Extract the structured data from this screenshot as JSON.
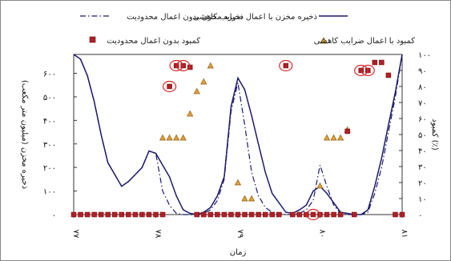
{
  "chart_data": {
    "type": "line",
    "direction": "rtl",
    "xlabel": "زمان",
    "ylabel_left": "ذخیره مخزن (میلیون متر مکعب)",
    "ylabel_right": "کمبود (٪)",
    "x_tick_labels": [
      "۷۷",
      "۷۸",
      "۷۹",
      "۸۰",
      "۸۱"
    ],
    "x_tick_positions": [
      0,
      12,
      24,
      36,
      48
    ],
    "x_range": [
      0,
      48
    ],
    "y_left_range": [
      0,
      680
    ],
    "y_left_ticks": [
      0,
      100,
      200,
      300,
      400,
      500,
      600
    ],
    "y_left_tick_labels": [
      "۰",
      "۱۰۰",
      "۲۰۰",
      "۳۰۰",
      "۴۰۰",
      "۵۰۰",
      "۶۰۰"
    ],
    "y_right_range": [
      0,
      100
    ],
    "y_right_ticks": [
      0,
      10,
      20,
      30,
      40,
      50,
      60,
      70,
      80,
      90,
      100
    ],
    "y_right_tick_labels": [
      "۰",
      "۱۰",
      "۲۰",
      "۳۰",
      "۴۰",
      "۵۰",
      "۶۰",
      "۷۰",
      "۸۰",
      "۹۰",
      "۱۰۰"
    ],
    "grid": false,
    "legend": {
      "storage_with": "ذخیره مخزن با اعمال ضرایب کاهشی",
      "storage_without": "ذخیره مخزن بدون اعمال محدودیت",
      "deficit_with": "کمبود با اعمال ضرایب کاهشی",
      "deficit_without": "کمبود بدون اعمال محدودیت"
    },
    "colors": {
      "storage_with": "#1a1a6e",
      "storage_without": "#1a1a6e",
      "deficit_with": "#e3a03a",
      "deficit_without": "#b01f24",
      "highlight": "#d62828",
      "frame": "#555555"
    },
    "series": [
      {
        "key": "storage_with",
        "name": "ذخیره مخزن با اعمال ضرایب کاهشی",
        "axis": "left",
        "style": "solid",
        "x": [
          0,
          1,
          2,
          3,
          4,
          5,
          6,
          7,
          8,
          9,
          10,
          11,
          12,
          13,
          14,
          15,
          16,
          17,
          18,
          19,
          20,
          21,
          22,
          23,
          24,
          25,
          26,
          27,
          28,
          29,
          30,
          31,
          32,
          33,
          34,
          35,
          36,
          37,
          38,
          39,
          40,
          41,
          42,
          43,
          44,
          45,
          46,
          47,
          48
        ],
        "values": [
          680,
          660,
          590,
          480,
          340,
          220,
          170,
          120,
          140,
          170,
          200,
          270,
          260,
          210,
          160,
          80,
          20,
          5,
          0,
          10,
          30,
          80,
          160,
          460,
          580,
          530,
          420,
          300,
          180,
          90,
          50,
          10,
          5,
          20,
          40,
          100,
          120,
          90,
          50,
          10,
          5,
          0,
          0,
          20,
          120,
          240,
          380,
          520,
          680
        ]
      },
      {
        "key": "storage_without",
        "name": "ذخیره مخزن بدون اعمال محدودیت",
        "axis": "left",
        "style": "dashdot",
        "x": [
          0,
          1,
          2,
          3,
          4,
          5,
          6,
          7,
          8,
          9,
          10,
          11,
          12,
          13,
          14,
          15,
          16,
          17,
          18,
          19,
          20,
          21,
          22,
          23,
          24,
          25,
          26,
          27,
          28,
          29,
          30,
          31,
          32,
          33,
          34,
          35,
          36,
          37,
          38,
          39,
          40,
          41,
          42,
          43,
          44,
          45,
          46,
          47,
          48
        ],
        "values": [
          680,
          660,
          590,
          480,
          340,
          220,
          170,
          120,
          140,
          170,
          200,
          270,
          260,
          100,
          40,
          5,
          0,
          0,
          0,
          5,
          20,
          60,
          150,
          440,
          560,
          380,
          180,
          80,
          30,
          10,
          5,
          0,
          0,
          5,
          20,
          60,
          210,
          120,
          40,
          5,
          0,
          0,
          0,
          10,
          90,
          200,
          350,
          500,
          680
        ]
      },
      {
        "key": "deficit_with",
        "name": "کمبود با اعمال ضرایب کاهشی",
        "axis": "right",
        "marker": "triangle",
        "x": [
          13,
          14,
          15,
          16,
          17,
          18,
          19,
          20,
          24,
          25,
          26,
          36,
          37,
          38,
          39,
          40
        ],
        "values": [
          48,
          48,
          48,
          48,
          63,
          77,
          83,
          93,
          20,
          10,
          10,
          18,
          48,
          48,
          48,
          53
        ]
      },
      {
        "key": "deficit_without",
        "name": "کمبود بدون اعمال محدودیت",
        "axis": "right",
        "marker": "square",
        "x": [
          0,
          1,
          2,
          3,
          4,
          5,
          6,
          7,
          8,
          9,
          10,
          11,
          12,
          13,
          14,
          15,
          16,
          17,
          18,
          19,
          20,
          21,
          22,
          23,
          24,
          25,
          26,
          27,
          28,
          29,
          30,
          31,
          32,
          33,
          34,
          35,
          36,
          37,
          38,
          39,
          40,
          41,
          42,
          43,
          44,
          45,
          46,
          47,
          48
        ],
        "values": [
          0,
          0,
          0,
          0,
          0,
          0,
          0,
          0,
          0,
          0,
          0,
          0,
          0,
          0,
          80,
          93,
          93,
          92,
          0,
          0,
          0,
          0,
          0,
          0,
          0,
          0,
          0,
          0,
          0,
          0,
          0,
          93,
          0,
          0,
          0,
          0,
          0,
          0,
          0,
          0,
          52,
          0,
          90,
          90,
          95,
          95,
          87,
          0,
          0
        ],
        "highlighted_x": [
          14,
          15,
          16,
          31,
          35,
          42,
          43
        ]
      }
    ]
  }
}
